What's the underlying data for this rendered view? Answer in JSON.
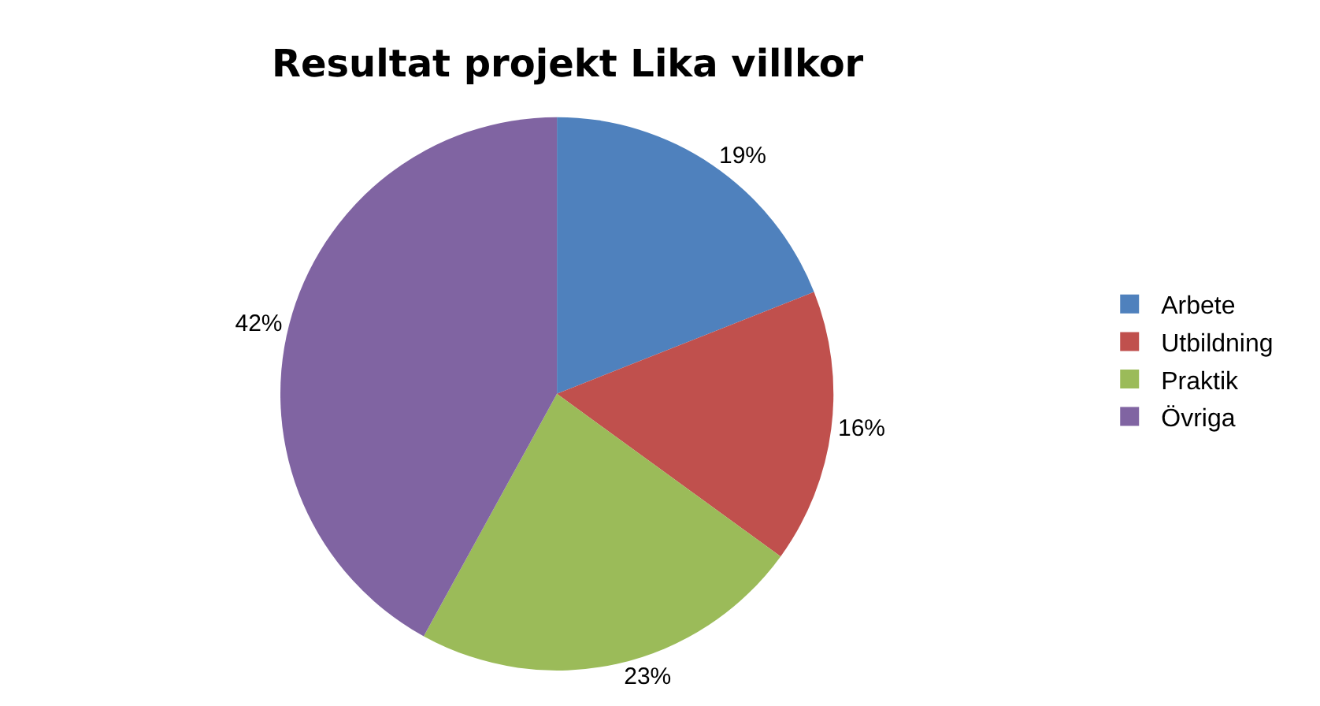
{
  "chart_data": {
    "type": "pie",
    "title": "Resultat projekt Lika villkor",
    "categories": [
      "Arbete",
      "Utbildning",
      "Praktik",
      "Övriga"
    ],
    "values": [
      19,
      16,
      23,
      42
    ],
    "value_labels": [
      "19%",
      "16%",
      "23%",
      "42%"
    ],
    "colors": [
      "#4f81bd",
      "#c0504d",
      "#9bbb59",
      "#8064a2"
    ],
    "legend": "right"
  }
}
